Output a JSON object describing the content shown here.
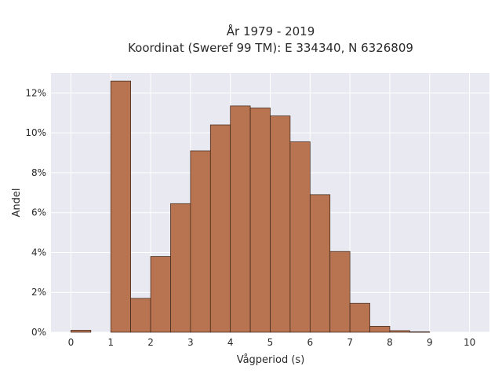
{
  "chart_data": {
    "type": "bar",
    "title_line1": "År 1979 - 2019",
    "title_line2": "Koordinat (Sweref 99 TM): E 334340, N 6326809",
    "xlabel": "Vågperiod (s)",
    "ylabel": "Andel",
    "xlim": [
      -0.5,
      10.5
    ],
    "ylim": [
      0,
      13.0
    ],
    "x_ticks": [
      "0",
      "1",
      "2",
      "3",
      "4",
      "5",
      "6",
      "7",
      "8",
      "9",
      "10"
    ],
    "y_ticks": [
      "0%",
      "2%",
      "4%",
      "6%",
      "8%",
      "10%",
      "12%"
    ],
    "bin_width": 0.5,
    "bins": [
      {
        "x0": 0.0,
        "value": 0.1
      },
      {
        "x0": 0.5,
        "value": 0.0
      },
      {
        "x0": 1.0,
        "value": 12.6
      },
      {
        "x0": 1.5,
        "value": 1.7
      },
      {
        "x0": 2.0,
        "value": 3.8
      },
      {
        "x0": 2.5,
        "value": 6.45
      },
      {
        "x0": 3.0,
        "value": 9.1
      },
      {
        "x0": 3.5,
        "value": 10.4
      },
      {
        "x0": 4.0,
        "value": 11.35
      },
      {
        "x0": 4.5,
        "value": 11.25
      },
      {
        "x0": 5.0,
        "value": 10.85
      },
      {
        "x0": 5.5,
        "value": 9.55
      },
      {
        "x0": 6.0,
        "value": 6.9
      },
      {
        "x0": 6.5,
        "value": 4.05
      },
      {
        "x0": 7.0,
        "value": 1.45
      },
      {
        "x0": 7.5,
        "value": 0.3
      },
      {
        "x0": 8.0,
        "value": 0.08
      },
      {
        "x0": 8.5,
        "value": 0.02
      },
      {
        "x0": 9.0,
        "value": 0.0
      },
      {
        "x0": 9.5,
        "value": 0.0
      }
    ],
    "grid": true,
    "colors": {
      "bar_fill": "#b87350",
      "bar_edge": "#3a2418",
      "plot_bg": "#e9e9f1",
      "grid": "#ffffff"
    }
  }
}
